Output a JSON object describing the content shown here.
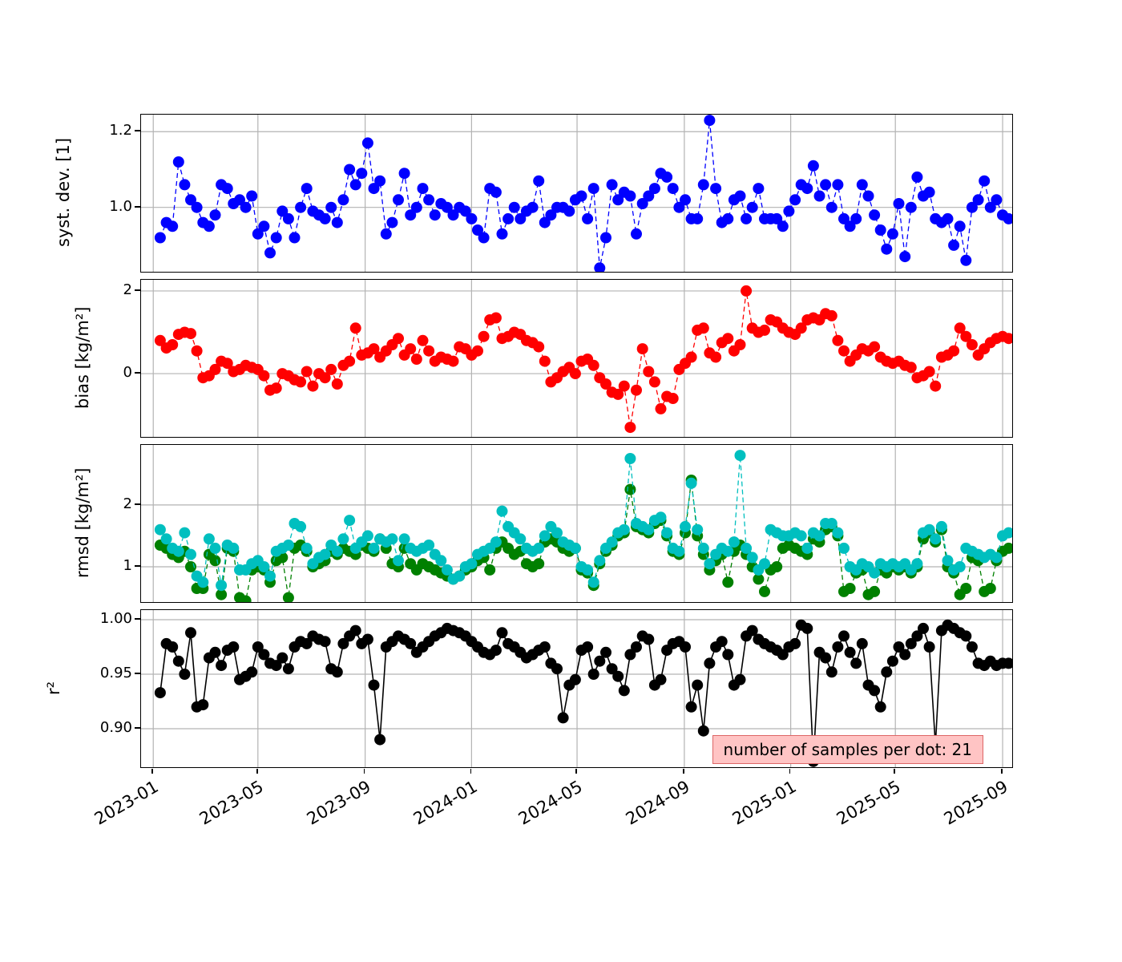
{
  "chart_data": {
    "type": "line",
    "title": "",
    "grid": true,
    "marker_size_px": 14,
    "x_start": "2023-01-09",
    "x_step_days": 7,
    "n_points": 140,
    "x_range": [
      "2022-12-18",
      "2025-09-12"
    ],
    "x_ticks": [
      {
        "date": "2023-01-01",
        "label": "2023-01"
      },
      {
        "date": "2023-05-01",
        "label": "2023-05"
      },
      {
        "date": "2023-09-01",
        "label": "2023-09"
      },
      {
        "date": "2024-01-01",
        "label": "2024-01"
      },
      {
        "date": "2024-05-01",
        "label": "2024-05"
      },
      {
        "date": "2024-09-01",
        "label": "2024-09"
      },
      {
        "date": "2025-01-01",
        "label": "2025-01"
      },
      {
        "date": "2025-05-01",
        "label": "2025-05"
      },
      {
        "date": "2025-09-01",
        "label": "2025-09"
      }
    ],
    "panels": [
      {
        "ylabel": "syst. dev. [1]",
        "ylim": [
          0.83,
          1.245
        ],
        "y_ticks": [
          {
            "v": 1.0,
            "label": "1.0"
          },
          {
            "v": 1.2,
            "label": "1.2"
          }
        ],
        "series": [
          {
            "name": "syst dev",
            "color": "#0000ff",
            "linestyle": "dashed",
            "values": [
              0.92,
              0.96,
              0.95,
              1.12,
              1.06,
              1.02,
              1.0,
              0.96,
              0.95,
              0.98,
              1.06,
              1.05,
              1.01,
              1.02,
              1.0,
              1.03,
              0.93,
              0.95,
              0.88,
              0.92,
              0.99,
              0.97,
              0.92,
              1.0,
              1.05,
              0.99,
              0.98,
              0.97,
              1.0,
              0.96,
              1.02,
              1.1,
              1.06,
              1.09,
              1.17,
              1.05,
              1.07,
              0.93,
              0.96,
              1.02,
              1.09,
              0.98,
              1.0,
              1.05,
              1.02,
              0.98,
              1.01,
              1.0,
              0.98,
              1.0,
              0.99,
              0.97,
              0.94,
              0.92,
              1.05,
              1.04,
              0.93,
              0.97,
              1.0,
              0.97,
              0.99,
              1.0,
              1.07,
              0.96,
              0.98,
              1.0,
              1.0,
              0.99,
              1.02,
              1.03,
              0.97,
              1.05,
              0.84,
              0.92,
              1.06,
              1.02,
              1.04,
              1.03,
              0.93,
              1.01,
              1.03,
              1.05,
              1.09,
              1.08,
              1.05,
              1.0,
              1.02,
              0.97,
              0.97,
              1.06,
              1.23,
              1.05,
              0.96,
              0.97,
              1.02,
              1.03,
              0.97,
              1.0,
              1.05,
              0.97,
              0.97,
              0.97,
              0.95,
              0.99,
              1.02,
              1.06,
              1.05,
              1.11,
              1.03,
              1.06,
              1.0,
              1.06,
              0.97,
              0.95,
              0.97,
              1.06,
              1.03,
              0.98,
              0.94,
              0.89,
              0.93,
              1.01,
              0.87,
              1.0,
              1.08,
              1.03,
              1.04,
              0.97,
              0.96,
              0.97,
              0.9,
              0.95,
              0.86,
              1.0,
              1.02,
              1.07,
              1.0,
              1.02,
              0.98,
              0.97
            ]
          }
        ]
      },
      {
        "ylabel": "bias [kg/m²]",
        "ylim": [
          -1.53,
          2.27
        ],
        "y_ticks": [
          {
            "v": 0,
            "label": "0"
          },
          {
            "v": 2,
            "label": "2"
          }
        ],
        "series": [
          {
            "name": "bias",
            "color": "#ff0000",
            "linestyle": "dashed",
            "values": [
              0.8,
              0.62,
              0.7,
              0.95,
              1.0,
              0.97,
              0.55,
              -0.1,
              -0.05,
              0.1,
              0.3,
              0.25,
              0.05,
              0.1,
              0.2,
              0.15,
              0.1,
              -0.05,
              -0.4,
              -0.35,
              0.0,
              -0.05,
              -0.15,
              -0.2,
              0.05,
              -0.3,
              0.0,
              -0.1,
              0.1,
              -0.25,
              0.2,
              0.3,
              1.1,
              0.45,
              0.5,
              0.6,
              0.4,
              0.55,
              0.7,
              0.85,
              0.45,
              0.6,
              0.35,
              0.8,
              0.55,
              0.3,
              0.4,
              0.35,
              0.3,
              0.65,
              0.6,
              0.45,
              0.55,
              0.9,
              1.3,
              1.35,
              0.85,
              0.9,
              1.0,
              0.95,
              0.8,
              0.75,
              0.65,
              0.3,
              -0.2,
              -0.1,
              0.05,
              0.15,
              0.0,
              0.3,
              0.35,
              0.2,
              -0.1,
              -0.25,
              -0.45,
              -0.5,
              -0.3,
              -1.3,
              -0.4,
              0.6,
              0.05,
              -0.2,
              -0.85,
              -0.55,
              -0.6,
              0.1,
              0.25,
              0.4,
              1.05,
              1.1,
              0.5,
              0.4,
              0.75,
              0.85,
              0.55,
              0.7,
              2.0,
              1.1,
              1.0,
              1.05,
              1.3,
              1.25,
              1.1,
              1.0,
              0.95,
              1.1,
              1.3,
              1.35,
              1.3,
              1.45,
              1.4,
              0.8,
              0.55,
              0.3,
              0.45,
              0.6,
              0.55,
              0.65,
              0.4,
              0.3,
              0.25,
              0.3,
              0.2,
              0.15,
              -0.1,
              -0.05,
              0.05,
              -0.3,
              0.4,
              0.45,
              0.55,
              1.1,
              0.9,
              0.7,
              0.45,
              0.6,
              0.75,
              0.85,
              0.9,
              0.85
            ]
          }
        ]
      },
      {
        "ylabel": "rmsd [kg/m²]",
        "ylim": [
          0.43,
          2.97
        ],
        "y_ticks": [
          {
            "v": 1,
            "label": "1"
          },
          {
            "v": 2,
            "label": "2"
          }
        ],
        "series": [
          {
            "name": "rmsd green",
            "color": "#008000",
            "linestyle": "dashed",
            "values": [
              1.35,
              1.3,
              1.2,
              1.15,
              1.25,
              1.0,
              0.65,
              0.65,
              1.2,
              1.1,
              0.55,
              1.3,
              1.25,
              0.5,
              0.45,
              0.95,
              1.0,
              0.95,
              0.75,
              1.1,
              1.15,
              0.5,
              1.3,
              1.35,
              1.25,
              1.0,
              1.05,
              1.1,
              1.25,
              1.2,
              1.3,
              1.25,
              1.2,
              1.35,
              1.3,
              1.25,
              1.45,
              1.3,
              1.05,
              1.0,
              1.3,
              1.05,
              0.95,
              1.05,
              1.0,
              0.95,
              0.9,
              0.85,
              0.8,
              0.85,
              0.95,
              1.0,
              1.1,
              1.15,
              0.95,
              1.3,
              1.4,
              1.3,
              1.2,
              1.25,
              1.05,
              1.0,
              1.05,
              1.4,
              1.45,
              1.4,
              1.3,
              1.25,
              1.3,
              0.95,
              0.9,
              0.7,
              1.05,
              1.25,
              1.35,
              1.5,
              1.55,
              2.25,
              1.65,
              1.6,
              1.55,
              1.7,
              1.75,
              1.5,
              1.25,
              1.2,
              1.55,
              2.4,
              1.5,
              1.2,
              0.95,
              1.1,
              1.2,
              0.75,
              1.25,
              1.35,
              1.2,
              1.0,
              0.8,
              0.6,
              0.95,
              1.0,
              1.3,
              1.35,
              1.3,
              1.25,
              1.2,
              1.45,
              1.4,
              1.6,
              1.65,
              1.5,
              0.6,
              0.65,
              0.9,
              0.95,
              0.55,
              0.6,
              0.95,
              0.9,
              1.0,
              0.95,
              1.0,
              0.9,
              1.0,
              1.45,
              1.55,
              1.4,
              1.6,
              1.0,
              0.9,
              0.55,
              0.65,
              1.15,
              1.1,
              0.6,
              0.65,
              1.1,
              1.25,
              1.3
            ]
          },
          {
            "name": "rmsd cyan",
            "color": "#00bfbf",
            "linestyle": "dashed",
            "values": [
              1.6,
              1.45,
              1.3,
              1.25,
              1.55,
              1.2,
              0.85,
              0.75,
              1.45,
              1.3,
              0.7,
              1.35,
              1.3,
              0.95,
              0.95,
              1.05,
              1.1,
              1.0,
              0.85,
              1.25,
              1.3,
              1.35,
              1.7,
              1.65,
              1.3,
              1.05,
              1.15,
              1.2,
              1.35,
              1.25,
              1.45,
              1.75,
              1.3,
              1.4,
              1.5,
              1.3,
              1.45,
              1.4,
              1.45,
              1.1,
              1.45,
              1.3,
              1.25,
              1.3,
              1.35,
              1.2,
              1.1,
              0.95,
              0.8,
              0.85,
              1.0,
              1.05,
              1.2,
              1.25,
              1.3,
              1.4,
              1.9,
              1.65,
              1.55,
              1.45,
              1.3,
              1.25,
              1.3,
              1.5,
              1.65,
              1.55,
              1.4,
              1.35,
              1.3,
              1.0,
              0.95,
              0.75,
              1.1,
              1.3,
              1.4,
              1.55,
              1.6,
              2.75,
              1.7,
              1.65,
              1.6,
              1.75,
              1.8,
              1.55,
              1.3,
              1.25,
              1.65,
              2.35,
              1.6,
              1.3,
              1.05,
              1.2,
              1.3,
              1.25,
              1.4,
              2.8,
              1.3,
              1.15,
              0.95,
              1.05,
              1.6,
              1.55,
              1.5,
              1.5,
              1.55,
              1.5,
              1.3,
              1.55,
              1.5,
              1.7,
              1.7,
              1.55,
              1.3,
              1.0,
              0.95,
              1.05,
              1.0,
              0.9,
              1.05,
              1.0,
              1.05,
              1.0,
              1.05,
              0.95,
              1.05,
              1.55,
              1.6,
              1.45,
              1.65,
              1.1,
              0.95,
              1.0,
              1.3,
              1.25,
              1.2,
              1.15,
              1.2,
              1.15,
              1.5,
              1.55
            ]
          }
        ]
      },
      {
        "ylabel": "r²",
        "ylim": [
          0.8647,
          1.0088
        ],
        "y_ticks": [
          {
            "v": 0.9,
            "label": "0.90"
          },
          {
            "v": 0.95,
            "label": "0.95"
          },
          {
            "v": 1.0,
            "label": "1.00"
          }
        ],
        "series": [
          {
            "name": "r squared",
            "color": "#000000",
            "linestyle": "solid",
            "values": [
              0.933,
              0.978,
              0.975,
              0.962,
              0.95,
              0.988,
              0.92,
              0.922,
              0.965,
              0.97,
              0.958,
              0.972,
              0.975,
              0.945,
              0.948,
              0.952,
              0.975,
              0.968,
              0.96,
              0.958,
              0.965,
              0.955,
              0.975,
              0.98,
              0.978,
              0.985,
              0.982,
              0.98,
              0.955,
              0.952,
              0.978,
              0.985,
              0.99,
              0.978,
              0.982,
              0.94,
              0.89,
              0.975,
              0.98,
              0.985,
              0.982,
              0.978,
              0.97,
              0.975,
              0.98,
              0.985,
              0.988,
              0.992,
              0.99,
              0.988,
              0.985,
              0.98,
              0.975,
              0.97,
              0.968,
              0.972,
              0.988,
              0.978,
              0.975,
              0.97,
              0.965,
              0.968,
              0.972,
              0.975,
              0.96,
              0.955,
              0.91,
              0.94,
              0.945,
              0.972,
              0.975,
              0.95,
              0.962,
              0.97,
              0.955,
              0.948,
              0.935,
              0.968,
              0.975,
              0.985,
              0.982,
              0.94,
              0.945,
              0.972,
              0.978,
              0.98,
              0.975,
              0.92,
              0.94,
              0.898,
              0.96,
              0.975,
              0.98,
              0.968,
              0.94,
              0.945,
              0.985,
              0.99,
              0.982,
              0.978,
              0.975,
              0.972,
              0.968,
              0.975,
              0.978,
              0.995,
              0.992,
              0.87,
              0.97,
              0.965,
              0.952,
              0.975,
              0.985,
              0.97,
              0.96,
              0.978,
              0.94,
              0.935,
              0.92,
              0.952,
              0.962,
              0.975,
              0.968,
              0.978,
              0.985,
              0.992,
              0.975,
              0.885,
              0.99,
              0.995,
              0.992,
              0.988,
              0.985,
              0.975,
              0.96,
              0.958,
              0.962,
              0.958,
              0.96,
              0.96
            ]
          }
        ]
      }
    ],
    "annotation": {
      "text": "number of samples per dot: 21",
      "bg_color": "#ffc4c4",
      "border_color": "#dd6666",
      "text_color": "#000000"
    },
    "grid_color": "#b3b3b3",
    "legend_position": "none"
  }
}
